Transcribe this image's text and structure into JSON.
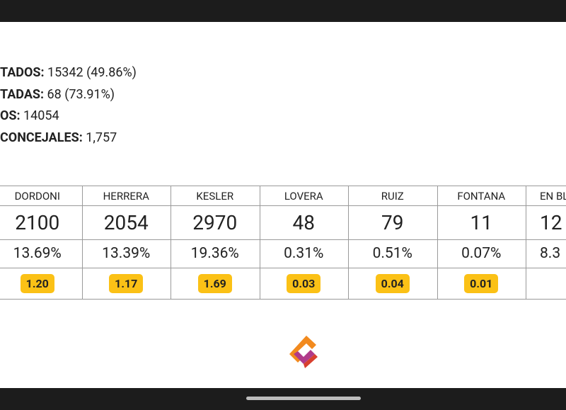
{
  "stats": [
    {
      "label": "TADOS:",
      "value": "15342 (49.86%)"
    },
    {
      "label": "TADAS:",
      "value": "68 (73.91%)"
    },
    {
      "label": "OS:",
      "value": "14054"
    },
    {
      "label": "CONCEJALES:",
      "value": "1,757"
    }
  ],
  "table": {
    "columns": [
      {
        "name": "DORDONI",
        "votes": "2100",
        "pct": "13.69%",
        "seats": "1.20"
      },
      {
        "name": "HERRERA",
        "votes": "2054",
        "pct": "13.39%",
        "seats": "1.17"
      },
      {
        "name": "KESLER",
        "votes": "2970",
        "pct": "19.36%",
        "seats": "1.69"
      },
      {
        "name": "LOVERA",
        "votes": "48",
        "pct": "0.31%",
        "seats": "0.03"
      },
      {
        "name": "RUIZ",
        "votes": "79",
        "pct": "0.51%",
        "seats": "0.04"
      },
      {
        "name": "FONTANA",
        "votes": "11",
        "pct": "0.07%",
        "seats": "0.01"
      },
      {
        "name": "EN BL",
        "votes": "12",
        "pct": "8.3"
      }
    ]
  }
}
